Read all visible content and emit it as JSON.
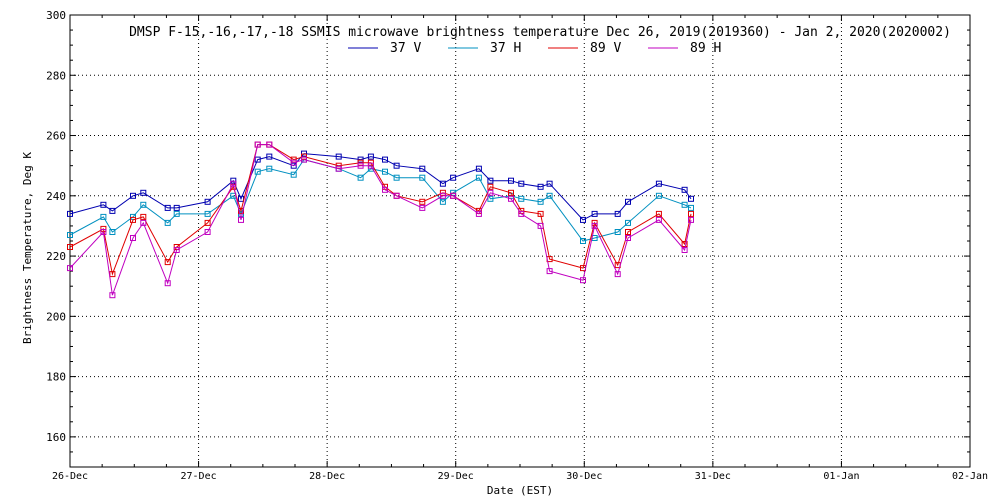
{
  "chart_data": {
    "type": "line",
    "title": "DMSP F-15,-16,-17,-18 SSMIS microwave brightness temperature Dec 26, 2019(2019360) - Jan  2, 2020(2020002)",
    "xlabel": "Date (EST)",
    "ylabel": "Brightness Temperature, Deg K",
    "x_tick_labels": [
      "26-Dec",
      "27-Dec",
      "28-Dec",
      "29-Dec",
      "30-Dec",
      "31-Dec",
      "01-Jan",
      "02-Jan"
    ],
    "xlim": [
      0,
      7
    ],
    "ylim": [
      150,
      300
    ],
    "y_ticks": [
      160,
      180,
      200,
      220,
      240,
      260,
      280,
      300
    ],
    "grid": true,
    "legend_position": "top-center",
    "x_unit": "days since 26-Dec 00:00 EST",
    "series": [
      {
        "name": "37 V",
        "color": "#0000b0",
        "points": [
          [
            0.0,
            234
          ],
          [
            0.26,
            237
          ],
          [
            0.33,
            235
          ],
          [
            0.49,
            240
          ],
          [
            0.57,
            241
          ],
          [
            0.76,
            236
          ],
          [
            0.83,
            236
          ],
          [
            1.07,
            238
          ],
          [
            1.27,
            245
          ],
          [
            1.33,
            239
          ],
          [
            1.46,
            252
          ],
          [
            1.55,
            253
          ],
          [
            1.74,
            250
          ],
          [
            1.82,
            254
          ],
          [
            2.09,
            253
          ],
          [
            2.26,
            252
          ],
          [
            2.34,
            253
          ],
          [
            2.45,
            252
          ],
          [
            2.54,
            250
          ],
          [
            2.74,
            249
          ],
          [
            2.9,
            244
          ],
          [
            2.98,
            246
          ],
          [
            3.18,
            249
          ],
          [
            3.27,
            245
          ],
          [
            3.43,
            245
          ],
          [
            3.51,
            244
          ],
          [
            3.66,
            243
          ],
          [
            3.73,
            244
          ],
          [
            3.99,
            232
          ],
          [
            4.08,
            234
          ],
          [
            4.26,
            234
          ],
          [
            4.34,
            238
          ],
          [
            4.58,
            244
          ],
          [
            4.78,
            242
          ],
          [
            4.83,
            239
          ]
        ]
      },
      {
        "name": "37 H",
        "color": "#0090c0",
        "points": [
          [
            0.0,
            227
          ],
          [
            0.26,
            233
          ],
          [
            0.33,
            228
          ],
          [
            0.49,
            233
          ],
          [
            0.57,
            237
          ],
          [
            0.76,
            231
          ],
          [
            0.83,
            234
          ],
          [
            1.07,
            234
          ],
          [
            1.27,
            240
          ],
          [
            1.33,
            234
          ],
          [
            1.46,
            248
          ],
          [
            1.55,
            249
          ],
          [
            1.74,
            247
          ],
          [
            1.82,
            252
          ],
          [
            2.09,
            249
          ],
          [
            2.26,
            246
          ],
          [
            2.34,
            249
          ],
          [
            2.45,
            248
          ],
          [
            2.54,
            246
          ],
          [
            2.74,
            246
          ],
          [
            2.9,
            238
          ],
          [
            2.98,
            241
          ],
          [
            3.18,
            246
          ],
          [
            3.27,
            239
          ],
          [
            3.43,
            240
          ],
          [
            3.51,
            239
          ],
          [
            3.66,
            238
          ],
          [
            3.73,
            240
          ],
          [
            3.99,
            225
          ],
          [
            4.08,
            226
          ],
          [
            4.26,
            228
          ],
          [
            4.34,
            231
          ],
          [
            4.58,
            240
          ],
          [
            4.78,
            237
          ],
          [
            4.83,
            236
          ]
        ]
      },
      {
        "name": "89 V",
        "color": "#e00000",
        "points": [
          [
            0.0,
            223
          ],
          [
            0.26,
            229
          ],
          [
            0.33,
            214
          ],
          [
            0.49,
            232
          ],
          [
            0.57,
            233
          ],
          [
            0.76,
            218
          ],
          [
            0.83,
            223
          ],
          [
            1.07,
            231
          ],
          [
            1.27,
            243
          ],
          [
            1.33,
            235
          ],
          [
            1.46,
            257
          ],
          [
            1.55,
            257
          ],
          [
            1.74,
            252
          ],
          [
            1.82,
            253
          ],
          [
            2.09,
            250
          ],
          [
            2.26,
            251
          ],
          [
            2.34,
            251
          ],
          [
            2.45,
            243
          ],
          [
            2.54,
            240
          ],
          [
            2.74,
            238
          ],
          [
            2.9,
            241
          ],
          [
            2.98,
            240
          ],
          [
            3.18,
            235
          ],
          [
            3.27,
            243
          ],
          [
            3.43,
            241
          ],
          [
            3.51,
            235
          ],
          [
            3.66,
            234
          ],
          [
            3.73,
            219
          ],
          [
            3.99,
            216
          ],
          [
            4.08,
            231
          ],
          [
            4.26,
            217
          ],
          [
            4.34,
            228
          ],
          [
            4.58,
            234
          ],
          [
            4.78,
            224
          ],
          [
            4.83,
            234
          ]
        ]
      },
      {
        "name": "89 H",
        "color": "#c000c0",
        "points": [
          [
            0.0,
            216
          ],
          [
            0.26,
            228
          ],
          [
            0.33,
            207
          ],
          [
            0.49,
            226
          ],
          [
            0.57,
            231
          ],
          [
            0.76,
            211
          ],
          [
            0.83,
            222
          ],
          [
            1.07,
            228
          ],
          [
            1.27,
            244
          ],
          [
            1.33,
            232
          ],
          [
            1.46,
            257
          ],
          [
            1.55,
            257
          ],
          [
            1.74,
            251
          ],
          [
            1.82,
            252
          ],
          [
            2.09,
            249
          ],
          [
            2.26,
            250
          ],
          [
            2.34,
            250
          ],
          [
            2.45,
            242
          ],
          [
            2.54,
            240
          ],
          [
            2.74,
            236
          ],
          [
            2.9,
            240
          ],
          [
            2.98,
            240
          ],
          [
            3.18,
            234
          ],
          [
            3.27,
            241
          ],
          [
            3.43,
            239
          ],
          [
            3.51,
            234
          ],
          [
            3.66,
            230
          ],
          [
            3.73,
            215
          ],
          [
            3.99,
            212
          ],
          [
            4.08,
            230
          ],
          [
            4.26,
            214
          ],
          [
            4.34,
            226
          ],
          [
            4.58,
            232
          ],
          [
            4.78,
            222
          ],
          [
            4.83,
            232
          ]
        ]
      }
    ]
  }
}
